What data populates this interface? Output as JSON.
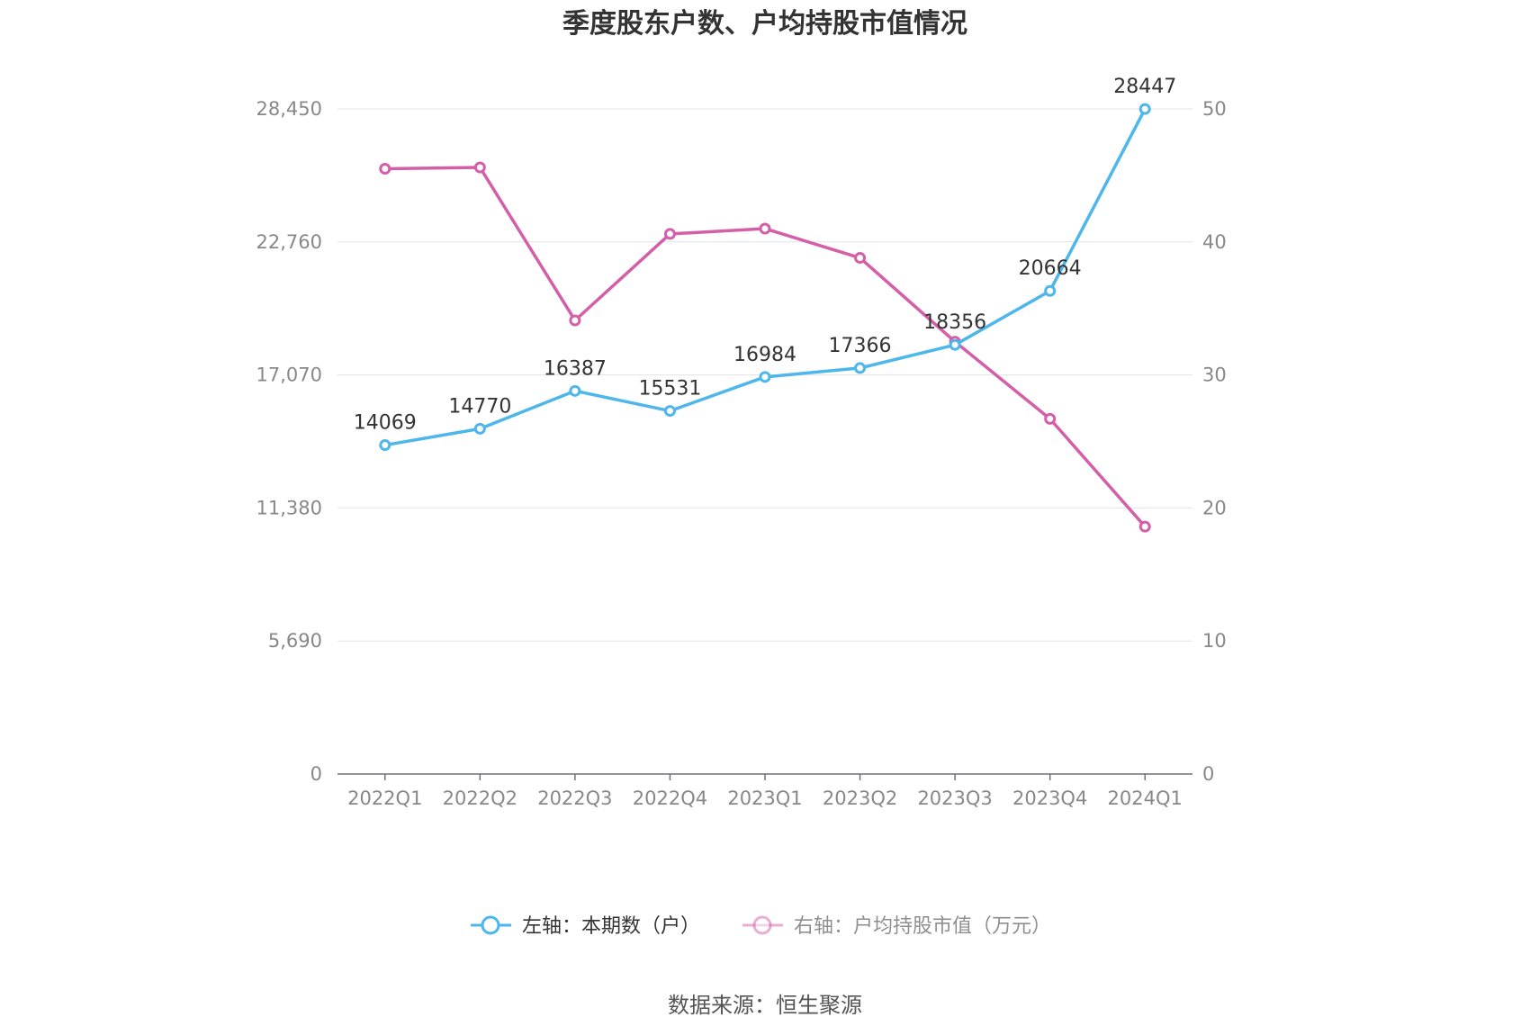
{
  "chart_data": {
    "type": "line",
    "title": "季度股东户数、户均持股市值情况",
    "categories": [
      "2022Q1",
      "2022Q2",
      "2022Q3",
      "2022Q4",
      "2023Q1",
      "2023Q2",
      "2023Q3",
      "2023Q4",
      "2024Q1"
    ],
    "left_axis": {
      "ylim": [
        0,
        28450
      ],
      "ticks": [
        "0",
        "5,690",
        "11,380",
        "17,070",
        "22,760",
        "28,450"
      ],
      "tick_values": [
        0,
        5690,
        11380,
        17070,
        22760,
        28450
      ]
    },
    "right_axis": {
      "ylim": [
        0,
        50
      ],
      "ticks": [
        "0",
        "10",
        "20",
        "30",
        "40",
        "50"
      ],
      "tick_values": [
        0,
        10,
        20,
        30,
        40,
        50
      ]
    },
    "series": [
      {
        "name": "左轴：本期数（户）",
        "axis": "left",
        "color": "#4db6ea",
        "values": [
          14069,
          14770,
          16387,
          15531,
          16984,
          17366,
          18356,
          20664,
          28447
        ],
        "labels": [
          "14069",
          "14770",
          "16387",
          "15531",
          "16984",
          "17366",
          "18356",
          "20664",
          "28447"
        ]
      },
      {
        "name": "右轴：户均持股市值（万元）",
        "axis": "right",
        "color": "#d45fa8",
        "values": [
          45.5,
          45.6,
          34.1,
          40.6,
          41.0,
          38.8,
          32.5,
          26.7,
          18.6
        ]
      }
    ],
    "grid": true,
    "legend": "bottom"
  },
  "source": "数据来源：恒生聚源"
}
